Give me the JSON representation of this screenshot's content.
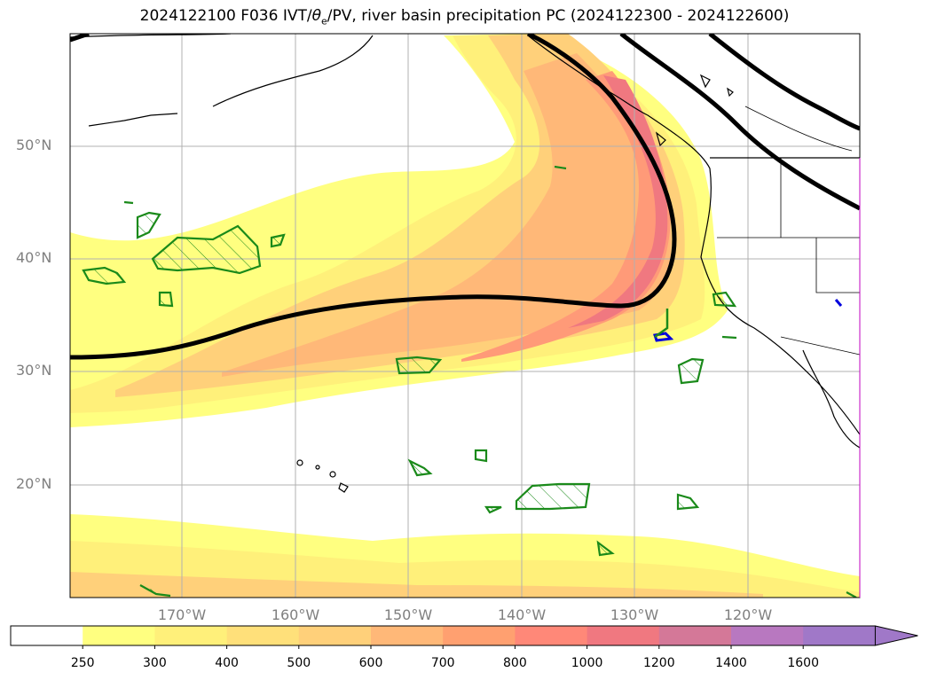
{
  "title": {
    "prefix": "2024122100 F036 IVT/",
    "theta": "θ",
    "sub": "e",
    "suffix": "/PV, river basin precipitation PC (2024122300 - 2024122600)"
  },
  "lat_labels": [
    "50°N",
    "40°N",
    "30°N",
    "20°N"
  ],
  "lon_labels": [
    "170°W",
    "160°W",
    "150°W",
    "140°W",
    "130°W",
    "120°W"
  ],
  "colorbar": {
    "ticks": [
      "250",
      "300",
      "400",
      "500",
      "600",
      "700",
      "800",
      "1000",
      "1200",
      "1400",
      "1600"
    ],
    "colors": [
      "#ffffff",
      "#ffff80",
      "#fff07a",
      "#ffe07a",
      "#ffd07a",
      "#ffb878",
      "#ffa070",
      "#ff8878",
      "#f07880",
      "#d47898",
      "#b878c0",
      "#a078c8"
    ],
    "extend": "max"
  },
  "map": {
    "region": "North Pacific / West coast of North America",
    "lat_range": [
      10,
      60
    ],
    "lon_range": [
      -180,
      -110
    ],
    "grid": true,
    "contours": [
      "IVT shading (kg m-1 s-1)",
      "theta-e black contour",
      "PV green hatched",
      "precip basins blue"
    ]
  }
}
